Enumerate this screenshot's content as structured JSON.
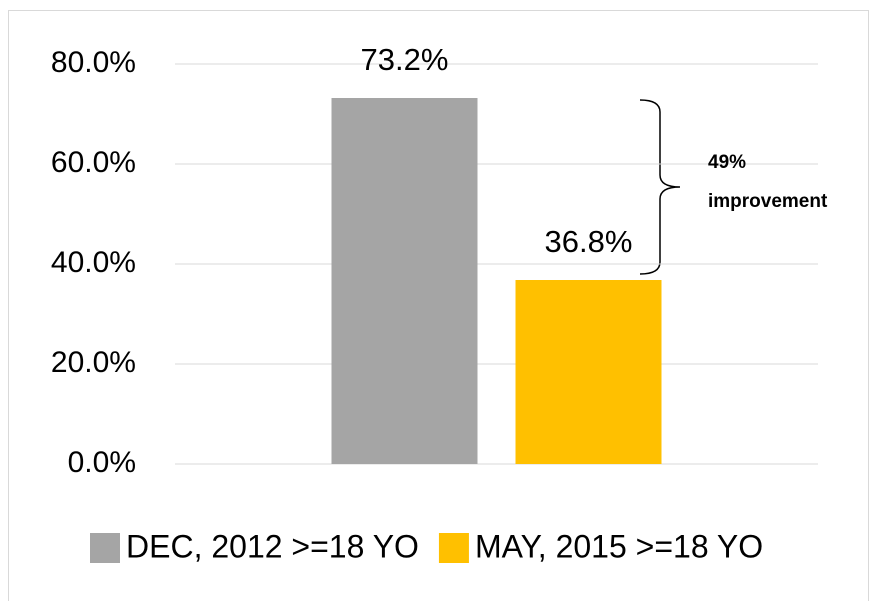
{
  "chart_data": {
    "type": "bar",
    "categories": [
      null
    ],
    "series": [
      {
        "name": "DEC, 2012 >=18 YO",
        "color": "#a5a5a5",
        "values": [
          73.2
        ],
        "value_labels": [
          "73.2%"
        ]
      },
      {
        "name": "MAY, 2015 >=18 YO",
        "color": "#ffc000",
        "values": [
          36.8
        ],
        "value_labels": [
          "36.8%"
        ]
      }
    ],
    "ylim": [
      0,
      80
    ],
    "yticks": [
      {
        "value": 0,
        "label": "0.0%"
      },
      {
        "value": 20,
        "label": "20.0%"
      },
      {
        "value": 40,
        "label": "40.0%"
      },
      {
        "value": 60,
        "label": "60.0%"
      },
      {
        "value": 80,
        "label": "80.0%"
      }
    ],
    "grid": true,
    "legend": "bottom",
    "annotation_lines": [
      "49%",
      "improvement"
    ]
  }
}
